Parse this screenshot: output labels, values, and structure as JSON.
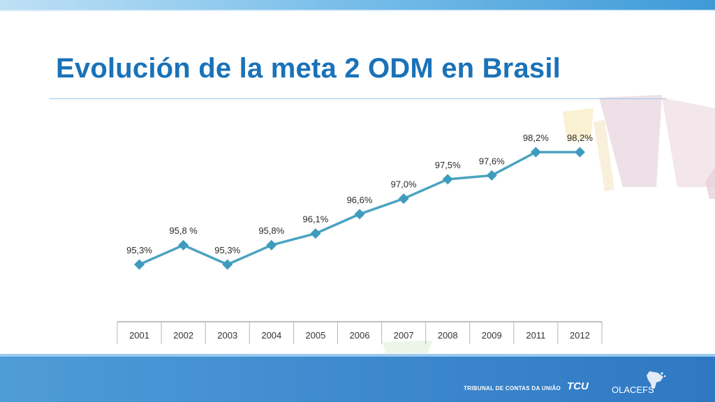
{
  "slide": {
    "title": "Evolución de la meta 2 ODM en Brasil"
  },
  "footer": {
    "institution": "TRIBUNAL DE CONTAS DA UNIÃO",
    "tcu_logo": "TCU",
    "olacefs_logo": "OLACEFS"
  },
  "colors": {
    "title": "#1a72b8",
    "series_line": "#4aa3c0",
    "marker": "#3e9bbd",
    "bottom_band": "#3b86cc"
  },
  "chart_data": {
    "type": "line",
    "title": "",
    "xlabel": "",
    "ylabel": "",
    "categories": [
      "2001",
      "2002",
      "2003",
      "2004",
      "2005",
      "2006",
      "2007",
      "2008",
      "2009",
      "2011",
      "2012"
    ],
    "series": [
      {
        "values": [
          95.3,
          95.8,
          95.3,
          95.8,
          96.1,
          96.6,
          97.0,
          97.5,
          97.6,
          98.2,
          98.2
        ],
        "labels": [
          "95,3%",
          "95,8 %",
          "95,3%",
          "95,8%",
          "96,1%",
          "96,6%",
          "97,0%",
          "97,5%",
          "97,6%",
          "98,2%",
          "98,2%"
        ]
      }
    ],
    "ylim": [
      94.5,
      98.5
    ],
    "grid": false,
    "legend": "none",
    "marker": "diamond"
  }
}
